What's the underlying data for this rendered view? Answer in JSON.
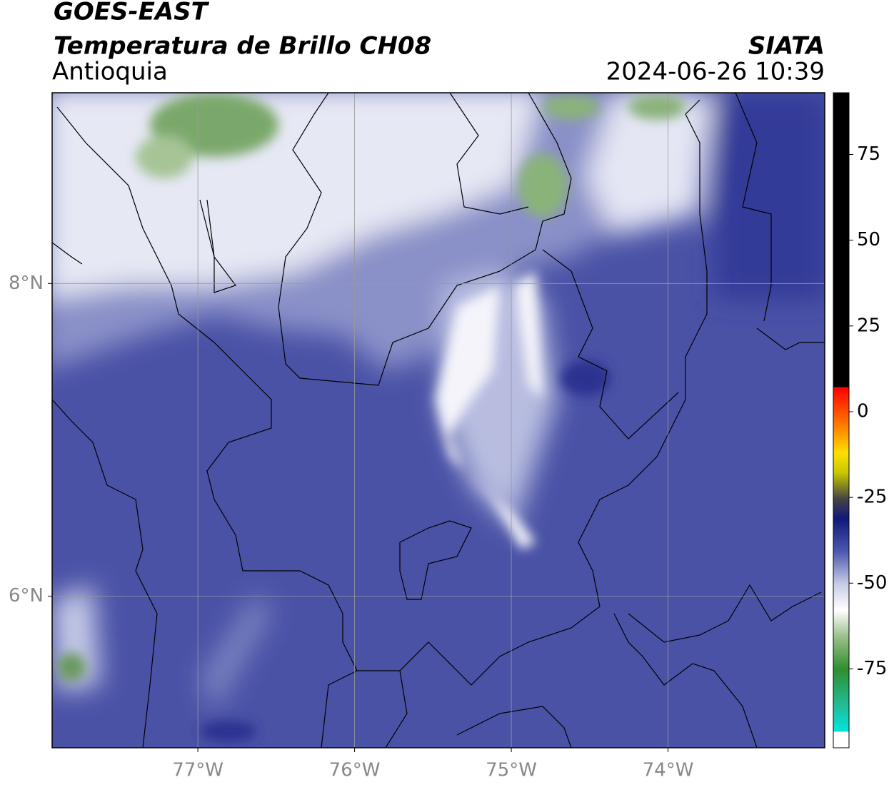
{
  "header": {
    "title": "GOES-EAST",
    "subtitle": "Temperatura de Brillo CH08",
    "region": "Antioquia",
    "source": "SIATA",
    "datetime": "2024-06-26 10:39"
  },
  "map": {
    "xlim": [
      -77.93,
      -73.0
    ],
    "ylim": [
      5.03,
      9.22
    ],
    "xticks": [
      {
        "value": -77,
        "label": "77°W"
      },
      {
        "value": -76,
        "label": "76°W"
      },
      {
        "value": -75,
        "label": "75°W"
      },
      {
        "value": -74,
        "label": "74°W"
      }
    ],
    "yticks": [
      {
        "value": 8,
        "label": "8°N"
      },
      {
        "value": 6,
        "label": "6°N"
      }
    ],
    "grid": true
  },
  "colorbar": {
    "lim": [
      -98,
      93
    ],
    "ticks": [
      75,
      50,
      25,
      0,
      -25,
      -50,
      -75
    ]
  }
}
